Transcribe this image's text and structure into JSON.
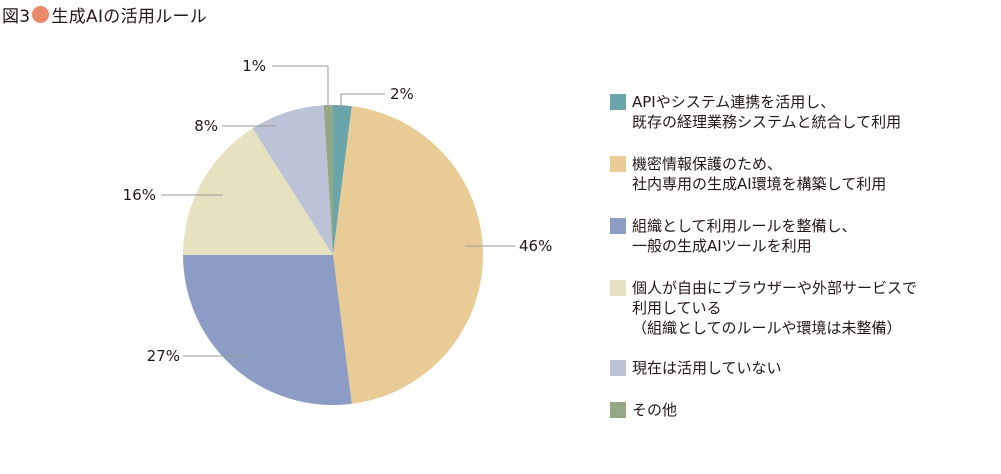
{
  "header": {
    "prefix": "図3",
    "dot_color": "#E8896A",
    "title": "生成AIの活用ルール"
  },
  "chart_data": {
    "type": "pie",
    "title": "生成AIの活用ルール",
    "start": "12 o'clock, clockwise",
    "slices": [
      {
        "lines": [
          "APIやシステム連携を活用し、",
          "既存の経理業務システムと統合して利用"
        ],
        "value": 2,
        "label": "2%",
        "color": "#6AA5AA"
      },
      {
        "lines": [
          "機密情報保護のため、",
          "社内専用の生成AI環境を構築して利用"
        ],
        "value": 46,
        "label": "46%",
        "color": "#E9CC95"
      },
      {
        "lines": [
          "組織として利用ルールを整備し、",
          "一般の生成AIツールを利用"
        ],
        "value": 27,
        "label": "27%",
        "color": "#8C9CC4"
      },
      {
        "lines": [
          "個人が自由にブラウザーや外部サービスで",
          "利用している",
          "（組織としてのルールや環境は未整備）"
        ],
        "value": 16,
        "label": "16%",
        "color": "#E6E2C0"
      },
      {
        "lines": [
          "現在は活用していない"
        ],
        "value": 8,
        "label": "8%",
        "color": "#BDC3D6"
      },
      {
        "lines": [
          "その他"
        ],
        "value": 1,
        "label": "1%",
        "color": "#94A886"
      }
    ]
  }
}
